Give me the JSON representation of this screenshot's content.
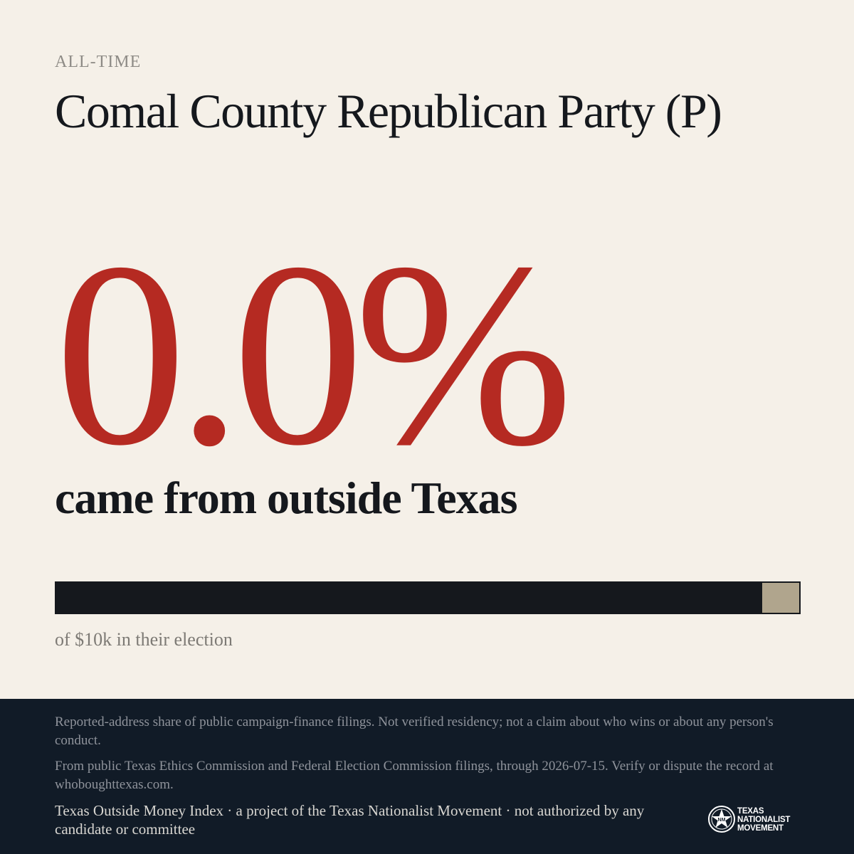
{
  "eyebrow": "ALL-TIME",
  "title": "Comal County Republican Party (P)",
  "headline": {
    "percent": "0.0%",
    "subtitle": "came from outside Texas"
  },
  "bar": {
    "outside_share": 0.0,
    "in_state_color": "#15181d",
    "outside_color": "#b0a58d",
    "caption": "of $10k in their election"
  },
  "colors": {
    "accent": "#b52a22",
    "background": "#f5f0e8",
    "footer_bg": "#111b27"
  },
  "footer": {
    "disclaimer": "Reported-address share of public campaign-finance filings. Not verified residency; not a claim about who wins or about any person's conduct.",
    "source": "From public Texas Ethics Commission and Federal Election Commission filings, through 2026-07-15. Verify or dispute the record at whoboughttexas.com.",
    "credit": "Texas Outside Money Index · a project of the Texas Nationalist Movement · not authorized by any candidate or committee",
    "logo": {
      "icon": "star-seal-icon",
      "line1": "TEXAS",
      "line2": "NATIONALIST",
      "line3": "MOVEMENT"
    }
  }
}
